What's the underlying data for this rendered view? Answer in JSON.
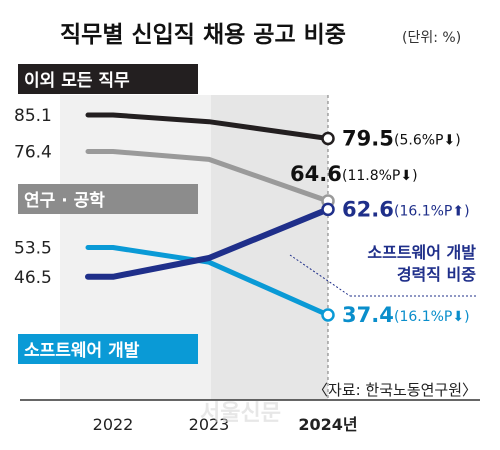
{
  "chart_data": {
    "type": "line",
    "title": "직무별 신입직 채용 공고 비중",
    "unit_note": "(단위: %)",
    "categories": [
      "2022",
      "2023",
      "2024년"
    ],
    "series": [
      {
        "name": "이외 모든 직무",
        "values": [
          85.1,
          83.5,
          79.5
        ],
        "color": "#231f20",
        "start_label": "85.1",
        "end_label": "79.5",
        "change_label": "(5.6%P⬇)",
        "label_bg": "#231f20"
      },
      {
        "name": "연구 · 공학",
        "values": [
          76.4,
          74.5,
          64.6
        ],
        "color": "#9a9a9a",
        "start_label": "76.4",
        "end_label": "64.6",
        "change_label": "(11.8%P⬇)",
        "label_bg": "#8c8c8c"
      },
      {
        "name": "소프트웨어 개발 경력직 비중",
        "name_lines": [
          "소프트웨어 개발",
          "경력직 비중"
        ],
        "values": [
          46.5,
          51.0,
          62.6
        ],
        "color": "#1f2f8a",
        "start_label": "46.5",
        "end_label": "62.6",
        "change_label": "(16.1%P⬆)"
      },
      {
        "name": "소프트웨어 개발",
        "values": [
          53.5,
          50.0,
          37.4
        ],
        "color": "#0a9ad6",
        "start_label": "53.5",
        "end_label": "37.4",
        "change_label": "(16.1%P⬇)",
        "label_bg": "#0a9ad6"
      }
    ],
    "source": "〈자료: 한국노동연구원〉",
    "watermark": "서울신문"
  }
}
